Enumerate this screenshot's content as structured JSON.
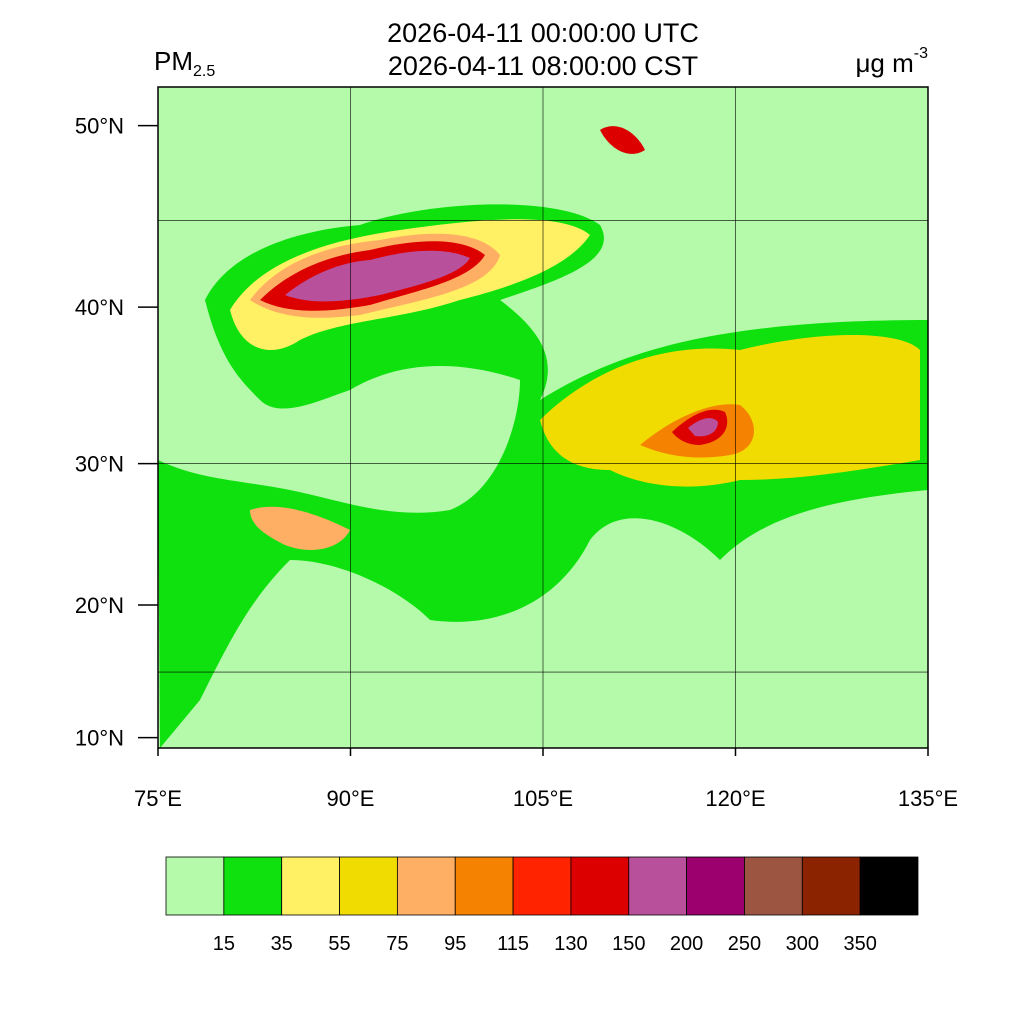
{
  "map": {
    "title_lines": [
      "2026-04-11 00:00:00 UTC",
      "2026-04-11 08:00:00 CST"
    ],
    "variable": {
      "base": "PM",
      "subscript": "2.5"
    },
    "units": {
      "base": "μg m",
      "superscript": "-3"
    },
    "projection": "mercator",
    "xlim": [
      75,
      135
    ],
    "ylim": [
      9.2,
      51.9
    ],
    "xticks": [
      {
        "value": 75,
        "label": "75°E"
      },
      {
        "value": 90,
        "label": "90°E"
      },
      {
        "value": 105,
        "label": "105°E"
      },
      {
        "value": 120,
        "label": "120°E"
      },
      {
        "value": 135,
        "label": "135°E"
      }
    ],
    "yticks": [
      {
        "value": 10,
        "label": "10°N"
      },
      {
        "value": 20,
        "label": "20°N"
      },
      {
        "value": 30,
        "label": "30°N"
      },
      {
        "value": 40,
        "label": "40°N"
      },
      {
        "value": 50,
        "label": "50°N"
      }
    ],
    "grid_lon": [
      90,
      105,
      120
    ],
    "grid_lat": [
      15,
      30,
      45
    ],
    "colorbar": {
      "colors": [
        "#b4faaa",
        "#0fe10f",
        "#fff064",
        "#f0dc00",
        "#ffaf64",
        "#f58200",
        "#ff2300",
        "#dc0000",
        "#b9509b",
        "#9b006e",
        "#9b5541",
        "#8c2300",
        "#000000"
      ],
      "levels": [
        15,
        35,
        55,
        75,
        95,
        115,
        130,
        150,
        200,
        250,
        300,
        350
      ]
    }
  }
}
